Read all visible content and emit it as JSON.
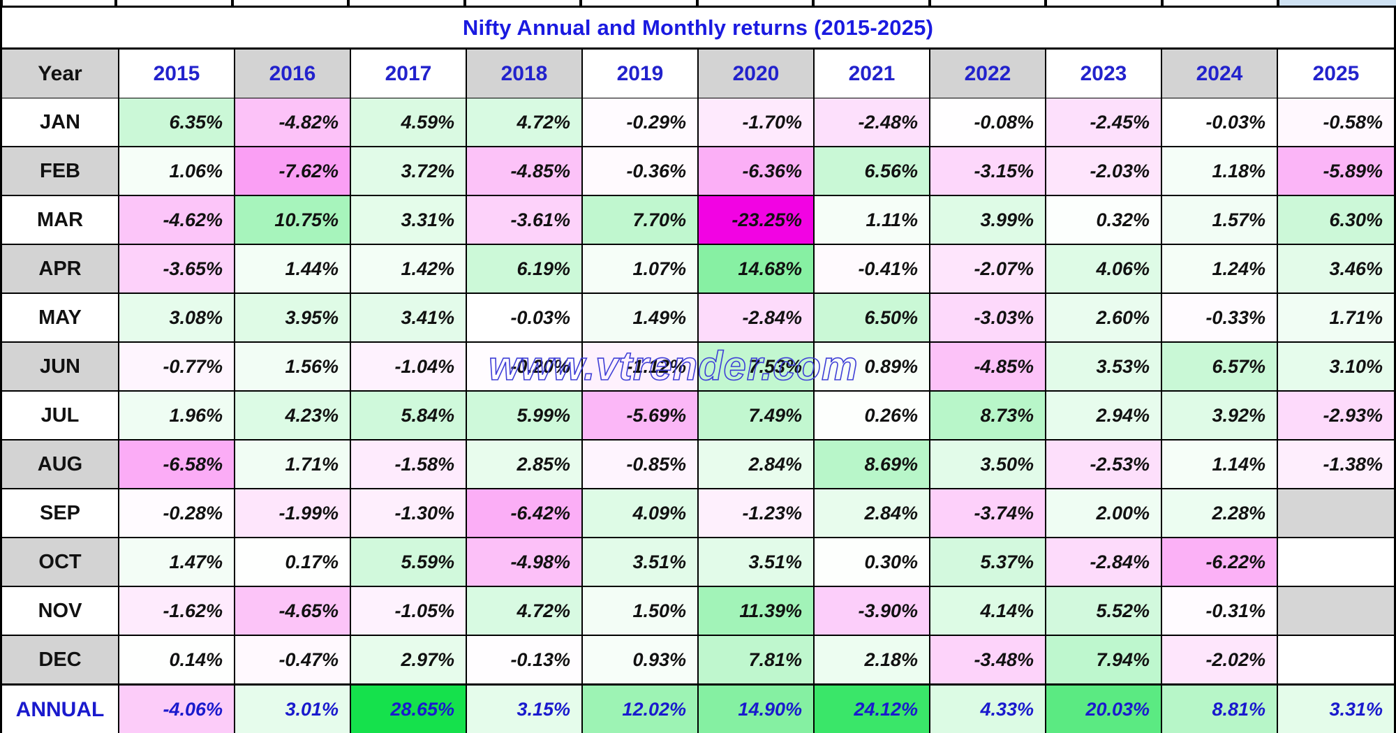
{
  "title": "Nifty Annual and Monthly returns (2015-2025)",
  "watermark": "www.vtrender.com",
  "corner_label": "Year",
  "annual_label": "ANNUAL",
  "colors": {
    "positive_max": "#0ae044",
    "negative_max": "#f203e3",
    "cell_white": "#ffffff",
    "header_gray": "#d3d3d3",
    "empty_gray": "#d6d6d6",
    "grid_black": "#000000",
    "title_blue": "#1a1ae0",
    "year_header_blue": "#2222cc",
    "annual_text_blue": "#1a1acd",
    "value_text_black": "#111111",
    "watermark_blue": "#3e3ed6",
    "top_right_strip_blue": "#cfe2f3"
  },
  "scale": {
    "positive_max_value": 30,
    "negative_max_value": 20
  },
  "chart_data": {
    "type": "heatmap",
    "title": "Nifty Annual and Monthly returns (2015-2025)",
    "unit": "%",
    "columns": [
      "2015",
      "2016",
      "2017",
      "2018",
      "2019",
      "2020",
      "2021",
      "2022",
      "2023",
      "2024",
      "2025"
    ],
    "rows": [
      "JAN",
      "FEB",
      "MAR",
      "APR",
      "MAY",
      "JUN",
      "JUL",
      "AUG",
      "SEP",
      "OCT",
      "NOV",
      "DEC"
    ],
    "monthly_returns_pct": {
      "JAN": [
        6.35,
        -4.82,
        4.59,
        4.72,
        -0.29,
        -1.7,
        -2.48,
        -0.08,
        -2.45,
        -0.03,
        -0.58
      ],
      "FEB": [
        1.06,
        -7.62,
        3.72,
        -4.85,
        -0.36,
        -6.36,
        6.56,
        -3.15,
        -2.03,
        1.18,
        -5.89
      ],
      "MAR": [
        -4.62,
        10.75,
        3.31,
        -3.61,
        7.7,
        -23.25,
        1.11,
        3.99,
        0.32,
        1.57,
        6.3
      ],
      "APR": [
        -3.65,
        1.44,
        1.42,
        6.19,
        1.07,
        14.68,
        -0.41,
        -2.07,
        4.06,
        1.24,
        3.46
      ],
      "MAY": [
        3.08,
        3.95,
        3.41,
        -0.03,
        1.49,
        -2.84,
        6.5,
        -3.03,
        2.6,
        -0.33,
        1.71
      ],
      "JUN": [
        -0.77,
        1.56,
        -1.04,
        -0.2,
        -1.12,
        7.53,
        0.89,
        -4.85,
        3.53,
        6.57,
        3.1
      ],
      "JUL": [
        1.96,
        4.23,
        5.84,
        5.99,
        -5.69,
        7.49,
        0.26,
        8.73,
        2.94,
        3.92,
        -2.93
      ],
      "AUG": [
        -6.58,
        1.71,
        -1.58,
        2.85,
        -0.85,
        2.84,
        8.69,
        3.5,
        -2.53,
        1.14,
        -1.38
      ],
      "SEP": [
        -0.28,
        -1.99,
        -1.3,
        -6.42,
        4.09,
        -1.23,
        2.84,
        -3.74,
        2.0,
        2.28,
        null
      ],
      "OCT": [
        1.47,
        0.17,
        5.59,
        -4.98,
        3.51,
        3.51,
        0.3,
        5.37,
        -2.84,
        -6.22,
        null
      ],
      "NOV": [
        -1.62,
        -4.65,
        -1.05,
        4.72,
        1.5,
        11.39,
        -3.9,
        4.14,
        5.52,
        -0.31,
        null
      ],
      "DEC": [
        0.14,
        -0.47,
        2.97,
        -0.13,
        0.93,
        7.81,
        2.18,
        -3.48,
        7.94,
        -2.02,
        null
      ]
    },
    "annual_returns_pct": [
      -4.06,
      3.01,
      28.65,
      3.15,
      12.02,
      14.9,
      24.12,
      4.33,
      20.03,
      8.81,
      3.31
    ],
    "missing_cells": [
      {
        "row": "SEP",
        "col": "2025",
        "bg": "#d6d6d6"
      },
      {
        "row": "OCT",
        "col": "2025",
        "bg": "#ffffff"
      },
      {
        "row": "NOV",
        "col": "2025",
        "bg": "#d6d6d6"
      },
      {
        "row": "DEC",
        "col": "2025",
        "bg": "#ffffff"
      }
    ],
    "legend_position": "none",
    "grid": true
  }
}
